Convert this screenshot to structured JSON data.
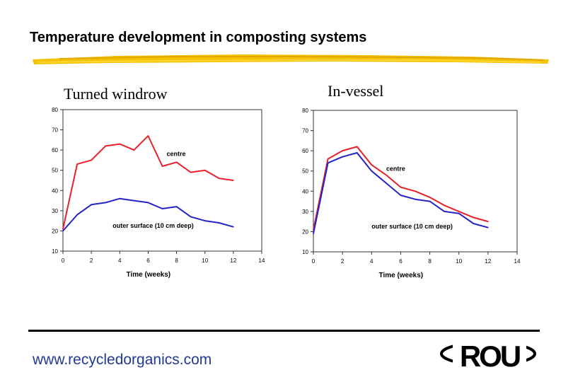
{
  "slide": {
    "title": "Temperature development in composting systems",
    "url": "www.recycledorganics.com",
    "logo_text": "ROU"
  },
  "chart_data": [
    {
      "type": "line",
      "subtitle": "Turned windrow",
      "xlabel": "Time (weeks)",
      "ylabel": "",
      "xlim": [
        0,
        14
      ],
      "ylim": [
        10,
        80
      ],
      "xticks": [
        0,
        2,
        4,
        6,
        8,
        10,
        12,
        14
      ],
      "yticks": [
        10,
        20,
        30,
        40,
        50,
        60,
        70,
        80
      ],
      "series": [
        {
          "name": "centre",
          "color": "#e8202a",
          "x": [
            0,
            1,
            2,
            3,
            4,
            5,
            6,
            7,
            8,
            9,
            10,
            11,
            12
          ],
          "y": [
            21,
            53,
            55,
            62,
            63,
            60,
            67,
            52,
            54,
            49,
            50,
            46,
            45
          ]
        },
        {
          "name": "outer surface (10 cm deep)",
          "color": "#2323c8",
          "x": [
            0,
            1,
            2,
            3,
            4,
            5,
            6,
            7,
            8,
            9,
            10,
            11,
            12
          ],
          "y": [
            20,
            28,
            33,
            34,
            36,
            35,
            34,
            31,
            32,
            27,
            25,
            24,
            22
          ]
        }
      ],
      "annotations": [
        {
          "text": "centre",
          "x": 7.3,
          "y": 57
        },
        {
          "text": "outer surface (10 cm deep)",
          "x": 3.5,
          "y": 21.5
        }
      ]
    },
    {
      "type": "line",
      "subtitle": "In-vessel",
      "xlabel": "Time (weeks)",
      "ylabel": "",
      "xlim": [
        0,
        14
      ],
      "ylim": [
        10,
        80
      ],
      "xticks": [
        0,
        2,
        4,
        6,
        8,
        10,
        12,
        14
      ],
      "yticks": [
        10,
        20,
        30,
        40,
        50,
        60,
        70,
        80
      ],
      "series": [
        {
          "name": "centre",
          "color": "#e8202a",
          "x": [
            0,
            1,
            2,
            3,
            4,
            5,
            6,
            7,
            8,
            9,
            10,
            11,
            12
          ],
          "y": [
            21,
            56,
            60,
            62,
            53,
            48,
            42,
            40,
            37,
            33,
            30,
            27,
            25
          ]
        },
        {
          "name": "outer surface (10 cm deep)",
          "color": "#2323c8",
          "x": [
            0,
            1,
            2,
            3,
            4,
            5,
            6,
            7,
            8,
            9,
            10,
            11,
            12
          ],
          "y": [
            19,
            54,
            57,
            59,
            50,
            44,
            38,
            36,
            35,
            30,
            29,
            24,
            22
          ]
        }
      ],
      "annotations": [
        {
          "text": "centre",
          "x": 5.0,
          "y": 50
        },
        {
          "text": "outer surface (10 cm deep)",
          "x": 4.0,
          "y": 21.5
        }
      ]
    }
  ]
}
